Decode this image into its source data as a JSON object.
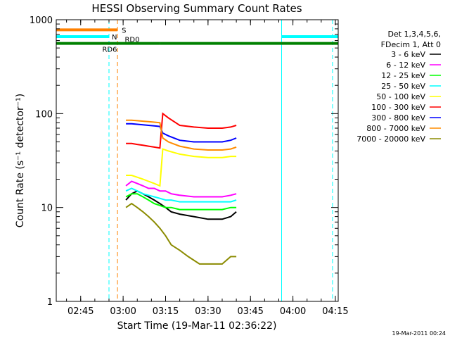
{
  "chart_data": {
    "type": "line",
    "title": "HESSI Observing Summary Count Rates",
    "xlabel": "Start Time (19-Mar-11 02:36:22)",
    "ylabel": "Count Rate (s⁻¹ detector⁻¹)",
    "yscale": "log",
    "ylim": [
      1,
      1000
    ],
    "xlim": [
      "02:36:22",
      "04:16:00"
    ],
    "x_ticks": [
      "02:45",
      "03:00",
      "03:15",
      "03:30",
      "03:45",
      "04:00",
      "04:15"
    ],
    "y_ticks": [
      "1",
      "10",
      "100",
      "1000"
    ],
    "legend": {
      "placement": "right",
      "header": [
        "Det 1,3,4,5,6,",
        "FDecim 1, Att 0"
      ]
    },
    "footer_timestamp": "19-Mar-2011 00:24",
    "series": [
      {
        "name": "3 - 6 keV",
        "color": "#000000",
        "x": [
          "03:01",
          "03:03",
          "03:05",
          "03:07",
          "03:09",
          "03:11",
          "03:13",
          "03:15",
          "03:17",
          "03:20",
          "03:25",
          "03:30",
          "03:35",
          "03:38",
          "03:40"
        ],
        "y": [
          12,
          14,
          15,
          14,
          13,
          12,
          11,
          10,
          9,
          8.5,
          8,
          7.5,
          7.5,
          8,
          9
        ]
      },
      {
        "name": "6 - 12 keV",
        "color": "#ff00ff",
        "x": [
          "03:01",
          "03:03",
          "03:05",
          "03:07",
          "03:09",
          "03:11",
          "03:13",
          "03:15",
          "03:17",
          "03:20",
          "03:25",
          "03:30",
          "03:35",
          "03:38",
          "03:40"
        ],
        "y": [
          17,
          19,
          18,
          17,
          16,
          16,
          15,
          15,
          14,
          13.5,
          13,
          13,
          13,
          13.5,
          14
        ]
      },
      {
        "name": "12 - 25 keV",
        "color": "#00ff00",
        "x": [
          "03:01",
          "03:03",
          "03:05",
          "03:07",
          "03:09",
          "03:11",
          "03:13",
          "03:15",
          "03:17",
          "03:20",
          "03:25",
          "03:30",
          "03:35",
          "03:38",
          "03:40"
        ],
        "y": [
          13,
          14,
          14,
          13,
          12,
          11,
          10.5,
          10,
          10,
          9.5,
          9.5,
          9.5,
          9.5,
          10,
          10
        ]
      },
      {
        "name": "25 - 50 keV",
        "color": "#00ffff",
        "x": [
          "03:01",
          "03:03",
          "03:05",
          "03:07",
          "03:09",
          "03:11",
          "03:13",
          "03:15",
          "03:17",
          "03:20",
          "03:25",
          "03:30",
          "03:35",
          "03:38",
          "03:40"
        ],
        "y": [
          15,
          16,
          15,
          14,
          13.5,
          13,
          12.5,
          12,
          12,
          11.5,
          11.5,
          11.5,
          11.5,
          11.5,
          12
        ]
      },
      {
        "name": "50 - 100 keV",
        "color": "#ffff00",
        "x": [
          "03:01",
          "03:03",
          "03:05",
          "03:07",
          "03:09",
          "03:11",
          "03:13",
          "03:14",
          "03:16",
          "03:20",
          "03:25",
          "03:30",
          "03:35",
          "03:38",
          "03:40"
        ],
        "y": [
          22,
          22,
          21,
          20,
          19,
          18,
          17,
          42,
          40,
          37,
          35,
          34,
          34,
          35,
          35
        ]
      },
      {
        "name": "100 - 300 keV",
        "color": "#ff0000",
        "x": [
          "03:01",
          "03:03",
          "03:05",
          "03:07",
          "03:09",
          "03:11",
          "03:13",
          "03:14",
          "03:16",
          "03:20",
          "03:25",
          "03:30",
          "03:35",
          "03:38",
          "03:40"
        ],
        "y": [
          48,
          48,
          47,
          46,
          45,
          44,
          43,
          100,
          90,
          75,
          72,
          70,
          70,
          72,
          75
        ]
      },
      {
        "name": "300 - 800 keV",
        "color": "#0000ff",
        "x": [
          "03:01",
          "03:03",
          "03:05",
          "03:07",
          "03:09",
          "03:11",
          "03:13",
          "03:14",
          "03:16",
          "03:20",
          "03:25",
          "03:30",
          "03:35",
          "03:38",
          "03:40"
        ],
        "y": [
          78,
          78,
          77,
          76,
          75,
          74,
          73,
          62,
          58,
          52,
          50,
          50,
          50,
          52,
          55
        ]
      },
      {
        "name": "800 - 7000 keV",
        "color": "#ff8c00",
        "x": [
          "03:01",
          "03:03",
          "03:05",
          "03:07",
          "03:09",
          "03:11",
          "03:13",
          "03:14",
          "03:16",
          "03:20",
          "03:25",
          "03:30",
          "03:35",
          "03:38",
          "03:40"
        ],
        "y": [
          85,
          85,
          84,
          83,
          82,
          81,
          80,
          55,
          50,
          45,
          42,
          41,
          41,
          42,
          44
        ]
      },
      {
        "name": "7000 - 20000 keV",
        "color": "#8b8b00",
        "x": [
          "03:01",
          "03:03",
          "03:05",
          "03:07",
          "03:09",
          "03:11",
          "03:13",
          "03:15",
          "03:17",
          "03:20",
          "03:23",
          "03:27",
          "03:31",
          "03:35",
          "03:38",
          "03:40"
        ],
        "y": [
          10,
          11,
          10,
          9,
          8,
          7,
          6,
          5,
          4,
          3.5,
          3,
          2.5,
          2.5,
          2.5,
          3,
          3
        ]
      }
    ],
    "flags": [
      {
        "label": "S",
        "color": "#ff8000",
        "y": 780,
        "segments": [
          [
            "02:36:22",
            "02:58"
          ]
        ]
      },
      {
        "label": "N",
        "color": "#00ffff",
        "y": 660,
        "segments": [
          [
            "02:36:22",
            "02:55"
          ],
          [
            "03:56",
            "04:16:00"
          ]
        ]
      },
      {
        "label": "RD0",
        "color": "#008000",
        "y": 560,
        "segments": [
          [
            "03:13",
            "04:16:00"
          ]
        ]
      },
      {
        "label": "RD6",
        "color": "#008000",
        "y": 560,
        "segments": [
          [
            "02:36:22",
            "03:13"
          ]
        ]
      }
    ],
    "vertical_markers": [
      {
        "time": "02:55",
        "color": "#00ffff",
        "style": "dashed"
      },
      {
        "time": "02:58",
        "color": "#ff8000",
        "style": "dashed"
      },
      {
        "time": "03:56",
        "color": "#00ffff",
        "style": "solid"
      },
      {
        "time": "04:14",
        "color": "#00ffff",
        "style": "dashed"
      }
    ]
  }
}
